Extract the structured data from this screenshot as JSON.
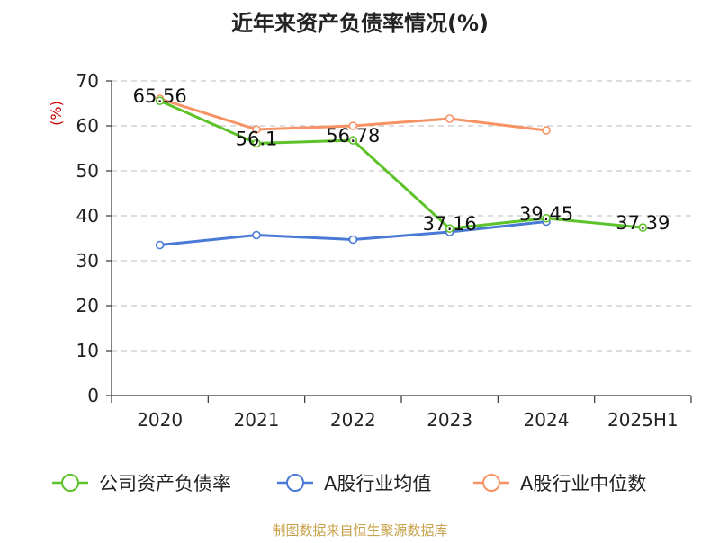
{
  "chart_data": {
    "type": "line",
    "title": "近年来资产负债率情况(%)",
    "ylabel": "(%)",
    "xlabel": "",
    "ylim": [
      0,
      70
    ],
    "yticks": [
      0,
      10,
      20,
      30,
      40,
      50,
      60,
      70
    ],
    "grid": true,
    "legend_position": "bottom",
    "categories": [
      "2020",
      "2021",
      "2022",
      "2023",
      "2024",
      "2025H1"
    ],
    "series": [
      {
        "name": "公司资产负债率",
        "color": "#5ec22b",
        "values": [
          65.56,
          56.1,
          56.78,
          37.16,
          39.45,
          37.39
        ],
        "labels": [
          "65.56",
          "56.1",
          "56.78",
          "37.16",
          "39.45",
          "37.39"
        ]
      },
      {
        "name": "A股行业均值",
        "color": "#4a7ad6",
        "values": [
          33.5,
          35.7,
          34.7,
          36.4,
          38.7,
          null
        ]
      },
      {
        "name": "A股行业中位数",
        "color": "#f79264",
        "values": [
          66.0,
          59.2,
          60.0,
          61.6,
          59.0,
          null
        ]
      }
    ]
  },
  "footer": {
    "source": "制图数据来自恒生聚源数据库",
    "source_color": "#c8a24a"
  },
  "colors": {
    "ylabel": "#cc0000",
    "axis": "#333333",
    "grid": "#bbbbbb"
  }
}
